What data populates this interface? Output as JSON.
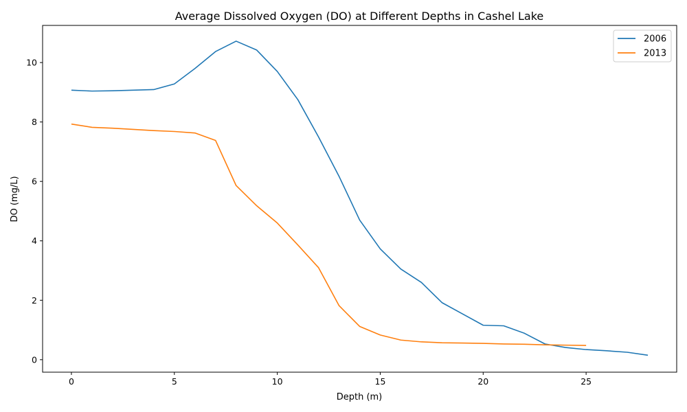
{
  "chart_data": {
    "type": "line",
    "title": "Average Dissolved Oxygen (DO) at Different Depths in Cashel Lake",
    "xlabel": "Depth (m)",
    "ylabel": "DO (mg/L)",
    "xlim": [
      -1.4,
      29.4
    ],
    "ylim": [
      -0.42,
      11.25
    ],
    "xticks": [
      0,
      5,
      10,
      15,
      20,
      25
    ],
    "yticks": [
      0,
      2,
      4,
      6,
      8,
      10
    ],
    "grid": false,
    "legend_position": "top-right",
    "series": [
      {
        "name": "2006",
        "color": "#1f77b4",
        "x": [
          0,
          1,
          2,
          3,
          4,
          5,
          6,
          7,
          8,
          9,
          10,
          11,
          12,
          13,
          14,
          15,
          16,
          17,
          18,
          19,
          20,
          21,
          22,
          23,
          24,
          25,
          26,
          27,
          28
        ],
        "y": [
          9.07,
          9.04,
          9.05,
          9.07,
          9.09,
          9.28,
          9.8,
          10.37,
          10.72,
          10.42,
          9.7,
          8.75,
          7.5,
          6.17,
          4.7,
          3.73,
          3.05,
          2.6,
          1.92,
          1.54,
          1.16,
          1.14,
          0.89,
          0.53,
          0.41,
          0.34,
          0.3,
          0.25,
          0.15
        ]
      },
      {
        "name": "2013",
        "color": "#ff7f0e",
        "x": [
          0,
          1,
          2,
          3,
          4,
          5,
          6,
          7,
          8,
          9,
          10,
          11,
          12,
          13,
          14,
          15,
          16,
          17,
          18,
          19,
          20,
          21,
          22,
          23,
          24,
          25
        ],
        "y": [
          7.93,
          7.82,
          7.79,
          7.75,
          7.71,
          7.68,
          7.63,
          7.38,
          5.86,
          5.18,
          4.6,
          3.86,
          3.1,
          1.82,
          1.12,
          0.83,
          0.66,
          0.6,
          0.57,
          0.56,
          0.55,
          0.53,
          0.52,
          0.5,
          0.49,
          0.48
        ]
      }
    ]
  }
}
